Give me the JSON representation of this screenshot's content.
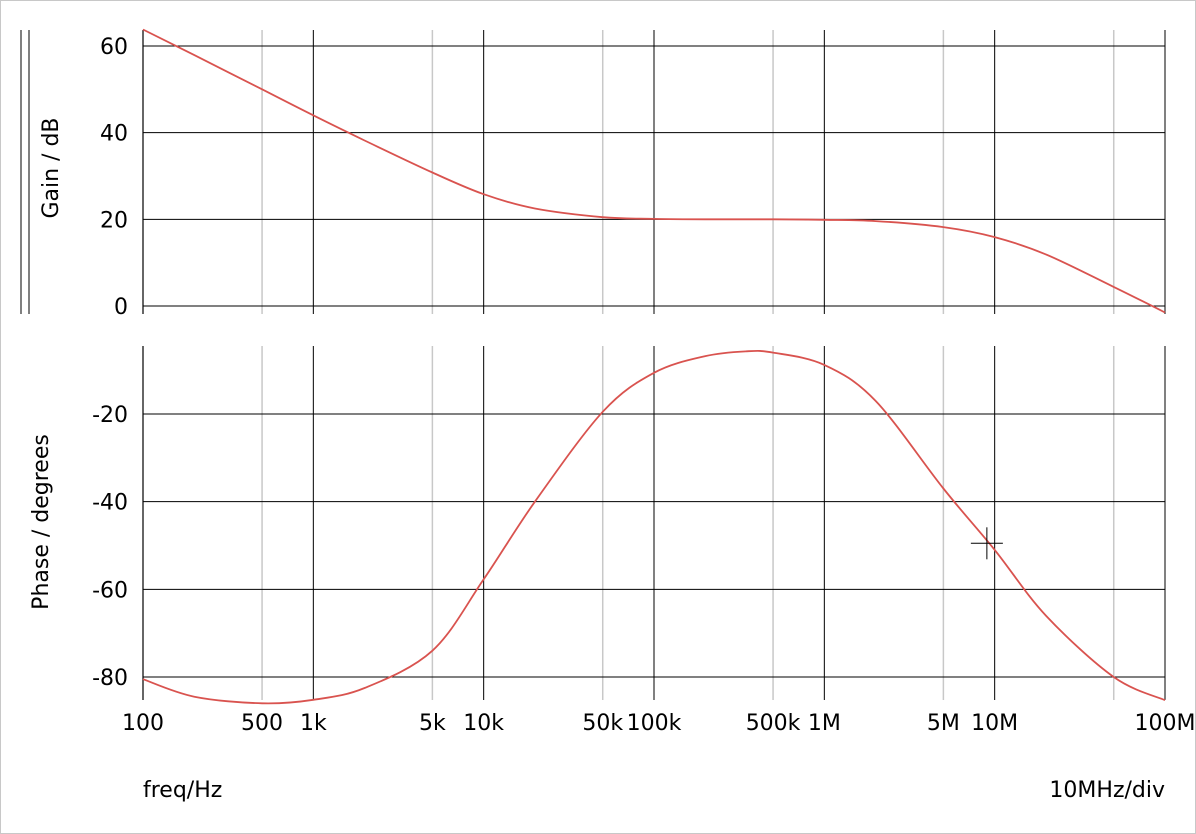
{
  "chart_data": [
    {
      "type": "line",
      "ylabel": "Gain / dB",
      "xscale": "log",
      "xlim": [
        100,
        100000000
      ],
      "ylim": [
        0,
        60
      ],
      "grid": true,
      "y_ticks": [
        "60",
        "40",
        "20",
        "0"
      ],
      "series": [
        {
          "color": "#d9534f",
          "x": [
            100,
            200,
            500,
            1000,
            2000,
            5000,
            10000,
            20000,
            50000,
            100000,
            200000,
            500000,
            1000000,
            2000000,
            5000000,
            10000000,
            20000000,
            50000000,
            100000000
          ],
          "y": [
            63.8,
            57.9,
            50.0,
            44.0,
            38.2,
            30.8,
            25.8,
            22.5,
            20.5,
            20.1,
            20.0,
            20.0,
            19.9,
            19.6,
            18.2,
            15.9,
            11.9,
            4.4,
            -1.5
          ]
        }
      ]
    },
    {
      "type": "line",
      "ylabel": "Phase / degrees",
      "xscale": "log",
      "xlim": [
        100,
        100000000
      ],
      "ylim": [
        -90,
        -5
      ],
      "grid": true,
      "y_ticks": [
        "-20",
        "-40",
        "-60",
        "-80"
      ],
      "series": [
        {
          "color": "#d9534f",
          "x": [
            100,
            200,
            500,
            1000,
            2000,
            5000,
            10000,
            20000,
            50000,
            100000,
            200000,
            350000,
            500000,
            1000000,
            2000000,
            5000000,
            10000000,
            20000000,
            50000000,
            100000000
          ],
          "y": [
            -80.5,
            -84.5,
            -86.0,
            -85.2,
            -82.5,
            -74.0,
            -57.7,
            -40.0,
            -19.5,
            -10.6,
            -6.8,
            -5.7,
            -6.0,
            -8.8,
            -17.0,
            -37.0,
            -51.0,
            -66.0,
            -80.0,
            -85.3
          ]
        }
      ]
    }
  ],
  "x_ticks": [
    "100",
    "500",
    "1k",
    "5k",
    "10k",
    "50k",
    "100k",
    "500k",
    "1M",
    "5M",
    "10M",
    "100M"
  ],
  "xlabel": "freq/Hz",
  "x_scale_note": "10MHz/div",
  "cursor": {
    "x": 9000000,
    "y": -49.5
  }
}
